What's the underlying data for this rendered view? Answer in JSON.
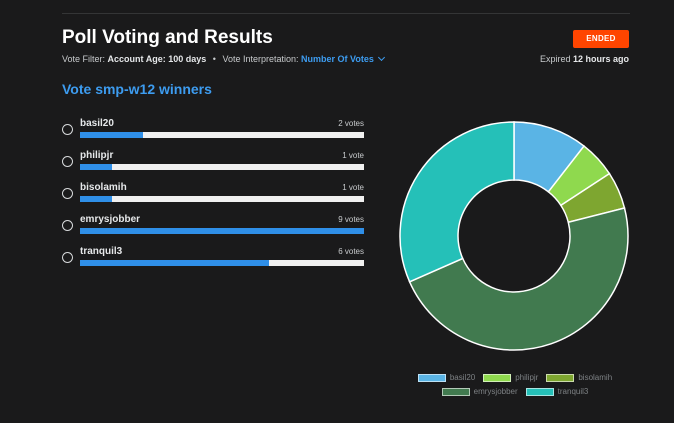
{
  "header": {
    "title": "Poll Voting and Results",
    "status_badge": "ENDED",
    "vote_filter_label": "Vote Filter:",
    "vote_filter_value": "Account Age: 100 days",
    "separator": "•",
    "vote_interpretation_label": "Vote Interpretation:",
    "vote_interpretation_value": "Number Of Votes",
    "expired_label": "Expired",
    "expired_value": "12 hours ago"
  },
  "poll": {
    "title": "Vote smp-w12 winners",
    "options": [
      {
        "name": "basil20",
        "votes_label": "2 votes",
        "votes": 2
      },
      {
        "name": "philipjr",
        "votes_label": "1 vote",
        "votes": 1
      },
      {
        "name": "bisolamih",
        "votes_label": "1 vote",
        "votes": 1
      },
      {
        "name": "emrysjobber",
        "votes_label": "9 votes",
        "votes": 9
      },
      {
        "name": "tranquil3",
        "votes_label": "6 votes",
        "votes": 6
      }
    ]
  },
  "chart_data": {
    "type": "pie",
    "categories": [
      "basil20",
      "philipjr",
      "bisolamih",
      "emrysjobber",
      "tranquil3"
    ],
    "values": [
      2,
      1,
      1,
      9,
      6
    ],
    "colors": [
      "#5ab4e5",
      "#8fd94e",
      "#7ea630",
      "#417a4f",
      "#25c0b8"
    ],
    "legend_placement": "bottom"
  }
}
